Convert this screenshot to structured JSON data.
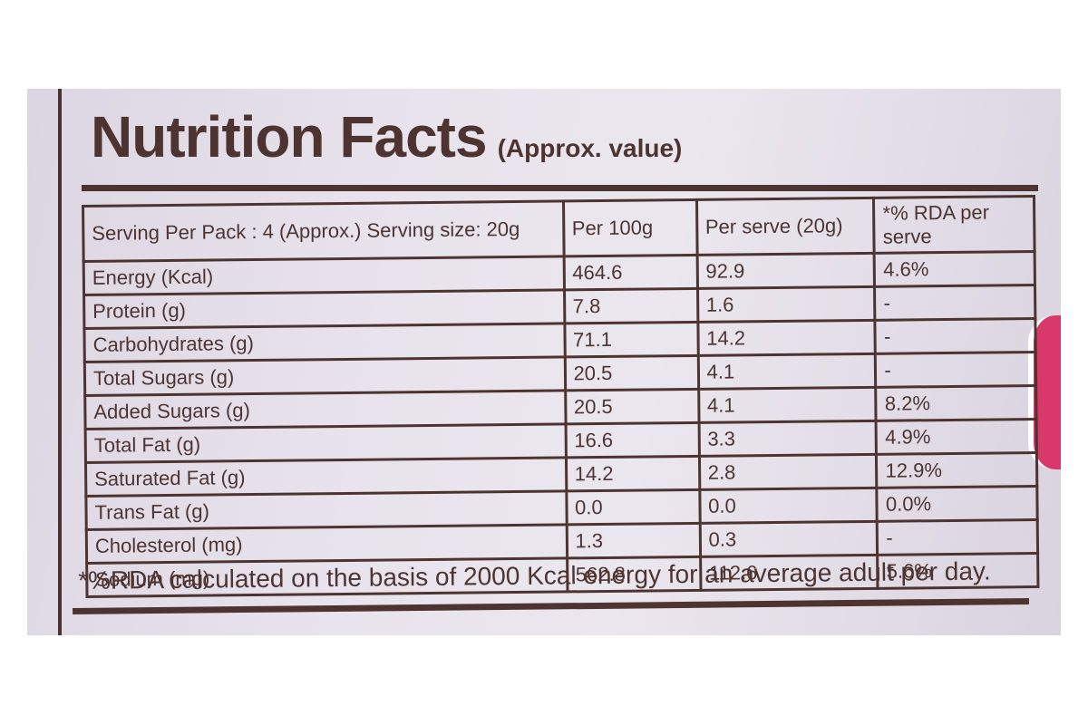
{
  "panel": {
    "title": "Nutrition Facts",
    "subtitle": "(Approx. value)"
  },
  "table": {
    "headers": [
      "Serving Per Pack : 4 (Approx.) Serving size: 20g",
      "Per 100g",
      "Per serve (20g)",
      "*% RDA per serve"
    ],
    "rows": [
      [
        "Energy (Kcal)",
        "464.6",
        "92.9",
        "4.6%"
      ],
      [
        "Protein (g)",
        "7.8",
        "1.6",
        "-"
      ],
      [
        "Carbohydrates (g)",
        "71.1",
        "14.2",
        "-"
      ],
      [
        "Total Sugars (g)",
        "20.5",
        "4.1",
        "-"
      ],
      [
        "Added Sugars (g)",
        "20.5",
        "4.1",
        "8.2%"
      ],
      [
        "Total Fat (g)",
        "16.6",
        "3.3",
        "4.9%"
      ],
      [
        "Saturated Fat (g)",
        "14.2",
        "2.8",
        "12.9%"
      ],
      [
        "Trans Fat (g)",
        "0.0",
        "0.0",
        "0.0%"
      ],
      [
        "Cholesterol (mg)",
        "1.3",
        "0.3",
        "-"
      ],
      [
        "Sodium (mg)",
        "562.8",
        "112.6",
        "5.6%"
      ]
    ]
  },
  "footnote": "*%RDA calculated on the basis of 2000 Kcal energy for an average adult per day.",
  "colors": {
    "ink": "#4e3431",
    "background": "#e8e3ec",
    "accent": "#d8386a"
  }
}
